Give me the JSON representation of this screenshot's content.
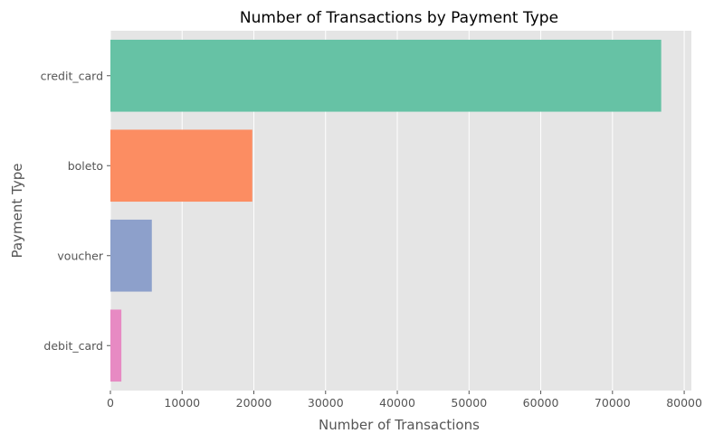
{
  "chart_data": {
    "type": "bar",
    "orientation": "horizontal",
    "title": "Number of Transactions by Payment Type",
    "xlabel": "Number of Transactions",
    "ylabel": "Payment Type",
    "categories": [
      "credit_card",
      "boleto",
      "voucher",
      "debit_card"
    ],
    "values": [
      76795,
      19784,
      5775,
      1529
    ],
    "colors": [
      "#66c2a5",
      "#fc8d62",
      "#8da0cb",
      "#e78ac3"
    ],
    "xlim": [
      0,
      81000
    ],
    "xticks": [
      0,
      10000,
      20000,
      30000,
      40000,
      50000,
      60000,
      70000,
      80000
    ],
    "xtick_labels": [
      "0",
      "10000",
      "20000",
      "30000",
      "40000",
      "50000",
      "60000",
      "70000",
      "80000"
    ],
    "grid": true,
    "background": "#e5e5e5",
    "legend": "none"
  }
}
